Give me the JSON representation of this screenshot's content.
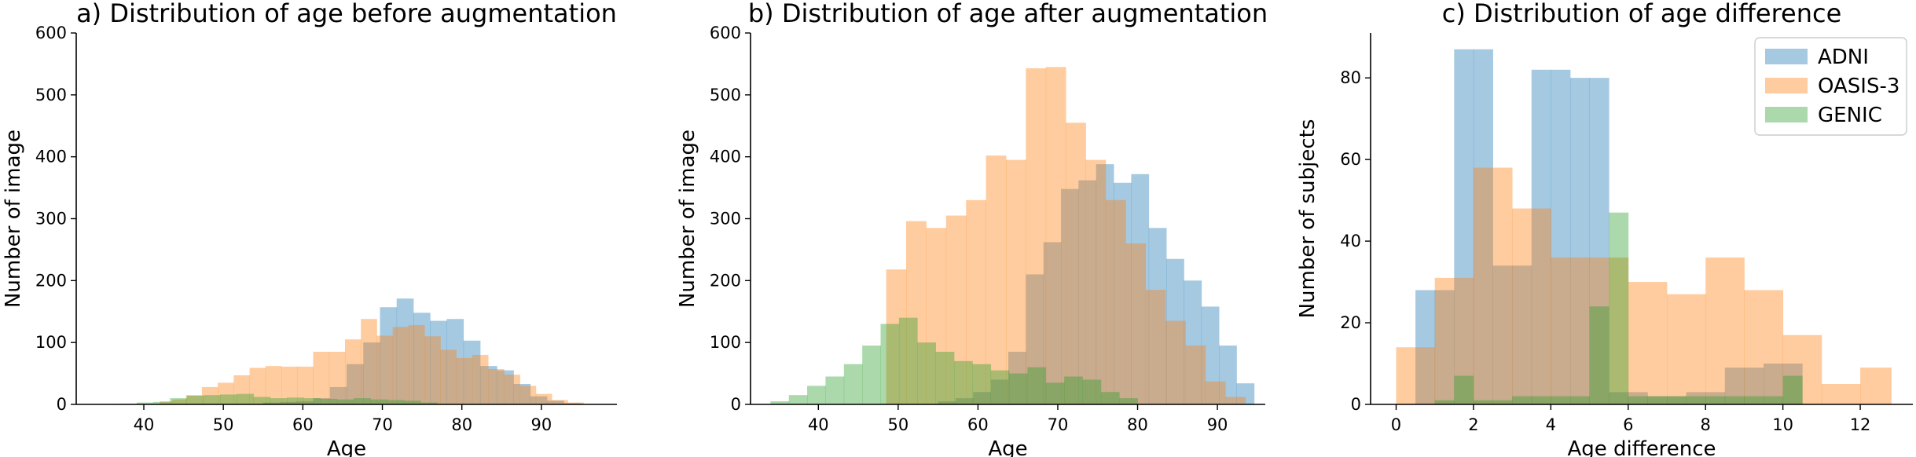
{
  "colors": {
    "ADNI": "#1f77b4",
    "OASIS-3": "#ff7f0e",
    "GENIC": "#2ca02c"
  },
  "bar_opacity": 0.4,
  "legend": {
    "placement": "upper-right",
    "entries": [
      "ADNI",
      "OASIS-3",
      "GENIC"
    ]
  },
  "chart_data": [
    {
      "type": "histogram",
      "title": "a) Distribution of age before augmentation",
      "xlabel": "Age",
      "ylabel": "Number of image",
      "xlim": [
        31.5,
        99.5
      ],
      "ylim": [
        0,
        600
      ],
      "xticks": [
        40,
        50,
        60,
        70,
        80,
        90
      ],
      "yticks": [
        0,
        100,
        200,
        300,
        400,
        500,
        600
      ],
      "series": [
        {
          "name": "ADNI",
          "edges": [
            55.0,
            57.1,
            59.2,
            61.3,
            63.4,
            65.5,
            67.6,
            69.7,
            71.8,
            73.9,
            76.0,
            78.1,
            80.2,
            82.3,
            84.4,
            86.5,
            88.6,
            90.7,
            92.8,
            94.9
          ],
          "counts": [
            3,
            4,
            5,
            10,
            28,
            65,
            100,
            157,
            171,
            148,
            135,
            138,
            103,
            62,
            55,
            33,
            13,
            6,
            2
          ]
        },
        {
          "name": "OASIS-3",
          "edges": [
            42.0,
            43.6,
            45.3,
            47.3,
            49.3,
            51.3,
            53.3,
            55.3,
            57.3,
            59.3,
            61.3,
            63.3,
            65.3,
            67.3,
            69.3,
            71.3,
            73.3,
            75.3,
            77.3,
            79.3,
            81.3,
            83.3,
            85.3,
            87.3,
            89.3,
            91.3,
            93.3,
            95.3
          ],
          "counts": [
            5,
            8,
            15,
            28,
            35,
            47,
            59,
            62,
            61,
            61,
            85,
            85,
            105,
            138,
            111,
            125,
            128,
            110,
            88,
            75,
            80,
            57,
            48,
            30,
            17,
            7,
            3
          ]
        },
        {
          "name": "GENIC",
          "edges": [
            37.0,
            39.1,
            41.2,
            43.3,
            45.4,
            47.5,
            49.6,
            51.7,
            53.8,
            55.9,
            58.0,
            60.1,
            62.2,
            64.3,
            66.4,
            68.5,
            70.6,
            72.7,
            74.8,
            76.9
          ],
          "counts": [
            1,
            3,
            4,
            10,
            14,
            15,
            16,
            17,
            12,
            10,
            11,
            10,
            9,
            8,
            10,
            8,
            7,
            6,
            3
          ]
        }
      ]
    },
    {
      "type": "histogram",
      "title": "b) Distribution of age after augmentation",
      "xlabel": "Age",
      "ylabel": "Number of image",
      "xlim": [
        31.5,
        96.0
      ],
      "ylim": [
        0,
        600
      ],
      "xticks": [
        40,
        50,
        60,
        70,
        80,
        90
      ],
      "yticks": [
        0,
        100,
        200,
        300,
        400,
        500,
        600
      ],
      "series": [
        {
          "name": "ADNI",
          "edges": [
            55.0,
            57.2,
            59.4,
            61.6,
            63.8,
            66.0,
            68.2,
            70.4,
            72.6,
            74.8,
            77.0,
            79.2,
            81.4,
            83.6,
            85.8,
            88.0,
            90.2,
            92.4,
            94.6
          ],
          "counts": [
            5,
            10,
            20,
            40,
            85,
            210,
            262,
            348,
            362,
            388,
            358,
            372,
            285,
            235,
            200,
            158,
            95,
            34,
            18
          ]
        },
        {
          "name": "OASIS-3",
          "edges": [
            48.5,
            51.0,
            53.5,
            56.0,
            58.5,
            61.0,
            63.5,
            66.0,
            68.5,
            71.0,
            73.5,
            76.0,
            78.5,
            81.0,
            83.5,
            86.0,
            88.5,
            91.0,
            93.5
          ],
          "counts": [
            218,
            296,
            285,
            305,
            330,
            402,
            395,
            543,
            545,
            455,
            395,
            330,
            260,
            185,
            135,
            95,
            37,
            12,
            5
          ]
        },
        {
          "name": "GENIC",
          "edges": [
            34.0,
            36.3,
            38.6,
            40.9,
            43.2,
            45.5,
            47.8,
            50.1,
            52.4,
            54.7,
            57.0,
            59.3,
            61.6,
            63.9,
            66.2,
            68.5,
            70.8,
            73.1,
            75.4,
            77.7,
            80.0
          ],
          "counts": [
            5,
            15,
            30,
            45,
            65,
            95,
            130,
            140,
            100,
            85,
            70,
            65,
            55,
            50,
            60,
            35,
            45,
            40,
            20,
            10
          ]
        }
      ]
    },
    {
      "type": "histogram",
      "title": "c) Distribution of age difference",
      "xlabel": "Age difference",
      "ylabel": "Number of subjects",
      "xlim": [
        -0.66,
        13.36
      ],
      "ylim": [
        0,
        91
      ],
      "xticks": [
        0,
        2,
        4,
        6,
        8,
        10,
        12
      ],
      "yticks": [
        0,
        20,
        40,
        60,
        80
      ],
      "series": [
        {
          "name": "ADNI",
          "edges": [
            0.5,
            1.0,
            1.5,
            2.0,
            2.5,
            3.0,
            3.5,
            4.0,
            4.5,
            5.0,
            5.5,
            6.0,
            6.5,
            7.0,
            7.5,
            8.0,
            8.5,
            9.0,
            9.5,
            10.0,
            10.5
          ],
          "counts": [
            28,
            28,
            87,
            87,
            34,
            34,
            82,
            82,
            80,
            80,
            3,
            3,
            2,
            2,
            3,
            3,
            9,
            9,
            10,
            10
          ]
        },
        {
          "name": "OASIS-3",
          "edges": [
            0.0,
            1.0,
            2.0,
            3.0,
            4.0,
            5.0,
            6.0,
            7.0,
            8.0,
            9.0,
            10.0,
            11.0,
            12.0,
            12.8
          ],
          "counts": [
            14,
            31,
            58,
            48,
            36,
            36,
            30,
            27,
            36,
            28,
            17,
            5,
            9
          ]
        },
        {
          "name": "GENIC",
          "edges": [
            1.0,
            1.5,
            2.0,
            2.5,
            3.0,
            3.5,
            4.0,
            4.5,
            5.0,
            5.5,
            6.0,
            6.5,
            7.0,
            7.5,
            8.0,
            8.5,
            9.0,
            9.5,
            10.0,
            10.5
          ],
          "counts": [
            1,
            7,
            1,
            1,
            2,
            2,
            2,
            2,
            24,
            47,
            2,
            2,
            2,
            2,
            2,
            2,
            2,
            2,
            7
          ]
        }
      ]
    }
  ]
}
